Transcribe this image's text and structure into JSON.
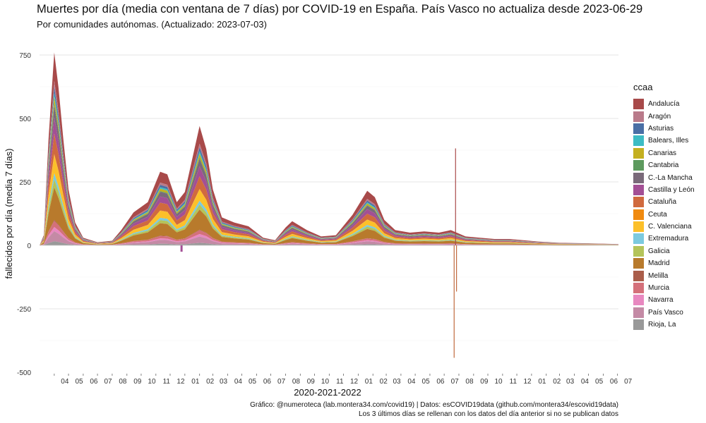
{
  "chart_data": {
    "type": "area",
    "stacked": true,
    "title": "Muertes por día (media con ventana de 7 días) por COVID-19 en España. País Vasco no actualiza desde  2023-06-29",
    "subtitle": "Por comunidades autónomas. (Actualizado: 2023-07-03)",
    "xlabel": "2020-2021-2022",
    "ylabel": "fallecidos por día (media 7 días)",
    "ylim": [
      -500,
      780
    ],
    "yticks": [
      750,
      500,
      250,
      0,
      -250,
      -500
    ],
    "x_range": [
      "2020-03-01",
      "2023-07-03"
    ],
    "x_ticks": [
      "04",
      "05",
      "06",
      "07",
      "08",
      "09",
      "10",
      "11",
      "12",
      "01",
      "02",
      "03",
      "04",
      "05",
      "06",
      "07",
      "08",
      "09",
      "10",
      "11",
      "12",
      "01",
      "02",
      "03",
      "04",
      "05",
      "06",
      "07",
      "08",
      "09",
      "10",
      "11",
      "12",
      "01",
      "02",
      "03",
      "04",
      "05",
      "06",
      "07"
    ],
    "grid": true,
    "legend": {
      "title": "ccaa",
      "position": "right",
      "items": [
        {
          "label": "Andalucía",
          "color": "#a84a4a"
        },
        {
          "label": "Aragón",
          "color": "#b97a8a"
        },
        {
          "label": "Asturias",
          "color": "#4a6fa5"
        },
        {
          "label": "Balears, Illes",
          "color": "#3dbcc4"
        },
        {
          "label": "Canarias",
          "color": "#c4b020"
        },
        {
          "label": "Cantabria",
          "color": "#5d9a5e"
        },
        {
          "label": "C.-La Mancha",
          "color": "#7a6a7a"
        },
        {
          "label": "Castilla y León",
          "color": "#a34f95"
        },
        {
          "label": "Cataluña",
          "color": "#d06a3e"
        },
        {
          "label": "Ceuta",
          "color": "#f08a10"
        },
        {
          "label": "C. Valenciana",
          "color": "#fcc02a"
        },
        {
          "label": "Extremadura",
          "color": "#7ccadf"
        },
        {
          "label": "Galicia",
          "color": "#b4c45a"
        },
        {
          "label": "Madrid",
          "color": "#b87a2c"
        },
        {
          "label": "Melilla",
          "color": "#aa5d4a"
        },
        {
          "label": "Murcia",
          "color": "#d4707a"
        },
        {
          "label": "Navarra",
          "color": "#e888c0"
        },
        {
          "label": "País Vasco",
          "color": "#c48aa5"
        },
        {
          "label": "Rioja, La",
          "color": "#999999"
        }
      ]
    },
    "total_series_points": [
      [
        "2020-03-01",
        0
      ],
      [
        "2020-03-10",
        40
      ],
      [
        "2020-03-20",
        420
      ],
      [
        "2020-04-01",
        760
      ],
      [
        "2020-04-10",
        620
      ],
      [
        "2020-04-20",
        420
      ],
      [
        "2020-05-01",
        220
      ],
      [
        "2020-05-15",
        90
      ],
      [
        "2020-06-01",
        30
      ],
      [
        "2020-07-01",
        12
      ],
      [
        "2020-08-01",
        18
      ],
      [
        "2020-08-20",
        60
      ],
      [
        "2020-09-15",
        130
      ],
      [
        "2020-10-15",
        170
      ],
      [
        "2020-11-10",
        290
      ],
      [
        "2020-11-25",
        280
      ],
      [
        "2020-12-15",
        170
      ],
      [
        "2021-01-01",
        210
      ],
      [
        "2021-02-01",
        470
      ],
      [
        "2021-02-15",
        380
      ],
      [
        "2021-03-01",
        220
      ],
      [
        "2021-03-20",
        110
      ],
      [
        "2021-04-15",
        90
      ],
      [
        "2021-05-15",
        75
      ],
      [
        "2021-06-15",
        30
      ],
      [
        "2021-07-10",
        20
      ],
      [
        "2021-08-01",
        70
      ],
      [
        "2021-08-15",
        95
      ],
      [
        "2021-09-15",
        60
      ],
      [
        "2021-10-15",
        35
      ],
      [
        "2021-11-15",
        40
      ],
      [
        "2021-12-20",
        120
      ],
      [
        "2022-01-20",
        215
      ],
      [
        "2022-02-05",
        190
      ],
      [
        "2022-02-25",
        100
      ],
      [
        "2022-03-20",
        60
      ],
      [
        "2022-04-20",
        50
      ],
      [
        "2022-05-20",
        55
      ],
      [
        "2022-06-20",
        50
      ],
      [
        "2022-07-15",
        60
      ],
      [
        "2022-08-15",
        35
      ],
      [
        "2022-09-15",
        30
      ],
      [
        "2022-10-15",
        25
      ],
      [
        "2022-11-15",
        25
      ],
      [
        "2022-12-15",
        20
      ],
      [
        "2023-01-15",
        15
      ],
      [
        "2023-03-01",
        10
      ],
      [
        "2023-05-01",
        8
      ],
      [
        "2023-07-03",
        5
      ]
    ],
    "annotations": [
      {
        "date": "2022-07-25",
        "value": 382
      },
      {
        "date": "2022-07-22",
        "value": -443
      },
      {
        "date": "2022-07-27",
        "value": -182
      },
      {
        "date": "2020-12-25",
        "value": -25
      }
    ]
  },
  "caption": {
    "line1": "Gráfico: @numeroteca (lab.montera34.com/covid19) | Datos: esCOVID19data (github.com/montera34/escovid19data)",
    "line2": "Los 3 últimos días se rellenan con los datos del día anterior si no se publican datos"
  }
}
